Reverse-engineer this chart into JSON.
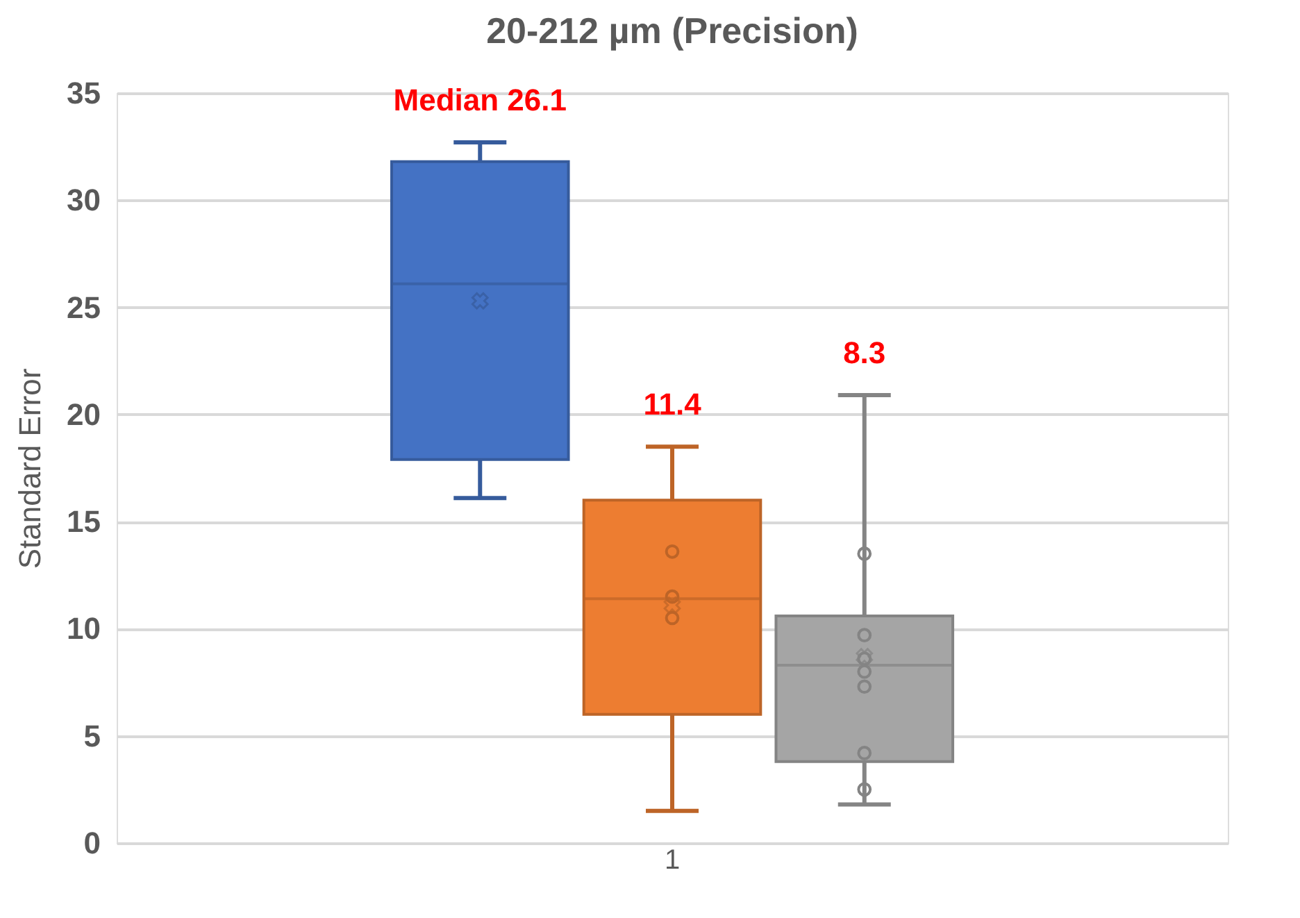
{
  "chart_data": {
    "type": "box",
    "title": "20-212 µm (Precision)",
    "ylabel": "Standard Error",
    "categories": [
      "1"
    ],
    "ylim": [
      0,
      35
    ],
    "yticks": [
      0,
      5,
      10,
      15,
      20,
      25,
      30,
      35
    ],
    "grid": "y",
    "series": [
      {
        "type": "box",
        "color": "#4472c4",
        "boxes": [
          {
            "low": 16.1,
            "q1": 17.9,
            "median": 26.1,
            "q3": 31.8,
            "high": 32.7,
            "mean": 25.3
          }
        ]
      },
      {
        "type": "box",
        "color": "#ed7d31",
        "boxes": [
          {
            "low": 1.5,
            "q1": 6.0,
            "median": 11.4,
            "q3": 16.0,
            "high": 18.5,
            "mean": 11.1
          }
        ]
      },
      {
        "type": "scatter",
        "color": "#bd6427",
        "marker": "circle",
        "x": [
          "1",
          "1",
          "1"
        ],
        "values": [
          13.6,
          11.5,
          10.5
        ]
      },
      {
        "type": "box",
        "color": "#a5a5a5",
        "boxes": [
          {
            "low": 1.8,
            "q1": 3.8,
            "median": 8.3,
            "q3": 10.6,
            "high": 20.9,
            "mean": 8.7
          }
        ]
      },
      {
        "type": "scatter",
        "color": "#848484",
        "marker": "circle",
        "x": [
          "1",
          "1",
          "1",
          "1",
          "1",
          "1",
          "1"
        ],
        "values": [
          13.5,
          9.7,
          8.6,
          8.0,
          7.3,
          4.2,
          2.5
        ]
      }
    ],
    "annotations": [
      "Median 26.1",
      "11.4",
      "8.3"
    ]
  }
}
